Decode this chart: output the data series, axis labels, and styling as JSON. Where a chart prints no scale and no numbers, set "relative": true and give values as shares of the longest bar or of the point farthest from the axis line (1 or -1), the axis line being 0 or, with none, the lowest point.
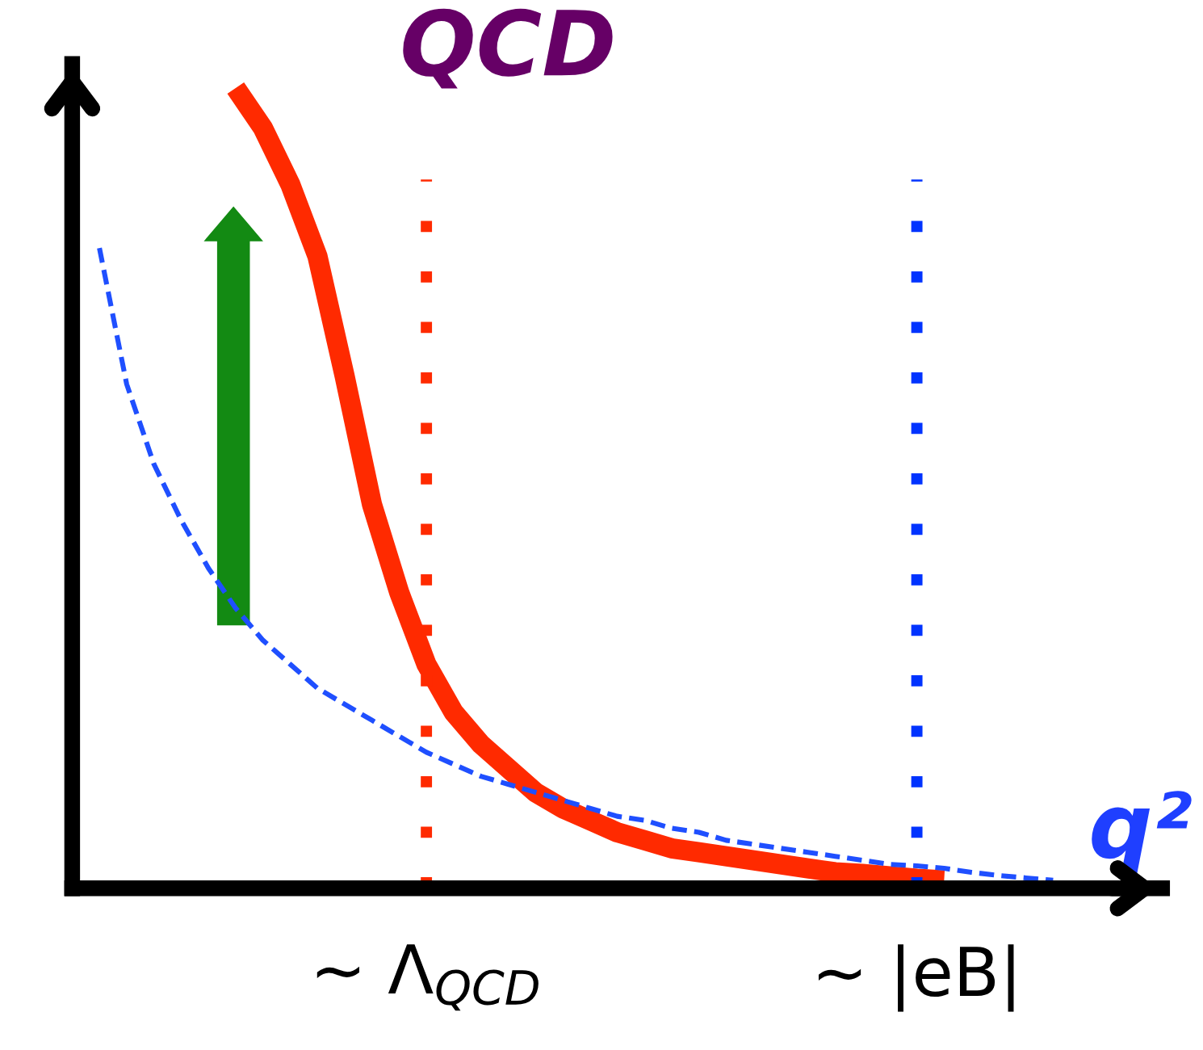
{
  "chart_data": {
    "type": "line",
    "title": "QCD",
    "xlabel": "q²",
    "relative": true,
    "categories": [
      null,
      null,
      null,
      null,
      null,
      null,
      null,
      null,
      null,
      null,
      null,
      null,
      null,
      "∼ Λ$_{QCD}$",
      null,
      null,
      null,
      null,
      null,
      null,
      null,
      null,
      null,
      null,
      null,
      null,
      null,
      null,
      null,
      null,
      null,
      "∼ |eB|",
      null,
      null,
      null,
      null,
      null,
      null,
      null,
      null,
      null
    ],
    "series": [
      {
        "color": "#ff2a00",
        "line_style": "solid",
        "values": [
          null,
          null,
          null,
          null,
          null,
          null,
          1.0,
          0.95,
          0.88,
          0.79,
          0.64,
          0.48,
          0.37,
          0.28,
          0.22,
          0.18,
          0.15,
          0.12,
          0.1,
          0.085,
          0.07,
          0.06,
          0.05,
          0.045,
          0.04,
          0.035,
          0.03,
          0.025,
          0.02,
          0.018,
          0.015,
          0.012,
          0.01,
          null,
          null,
          null,
          null,
          null,
          null,
          null,
          null
        ]
      },
      {
        "color": "#1f4fff",
        "line_style": "dashed",
        "values": [
          null,
          0.8,
          0.63,
          0.53,
          0.46,
          0.4,
          0.35,
          0.31,
          0.28,
          0.25,
          0.23,
          0.21,
          0.19,
          0.17,
          0.155,
          0.14,
          0.13,
          0.12,
          0.11,
          0.1,
          0.09,
          0.085,
          0.075,
          0.07,
          0.06,
          0.055,
          0.05,
          0.045,
          0.04,
          0.035,
          0.03,
          0.028,
          0.025,
          0.02,
          0.016,
          0.013,
          0.01,
          null,
          null,
          null,
          null
        ]
      }
    ],
    "ref_lines": [
      {
        "axis": "x",
        "value": "∼ Λ$_{QCD}$",
        "color": "#ff2a00",
        "line_style": "dotted"
      },
      {
        "axis": "x",
        "value": "∼ |eB|",
        "color": "#0033ff",
        "line_style": "dotted"
      }
    ],
    "grid": false,
    "legend": false,
    "marker": "none"
  }
}
